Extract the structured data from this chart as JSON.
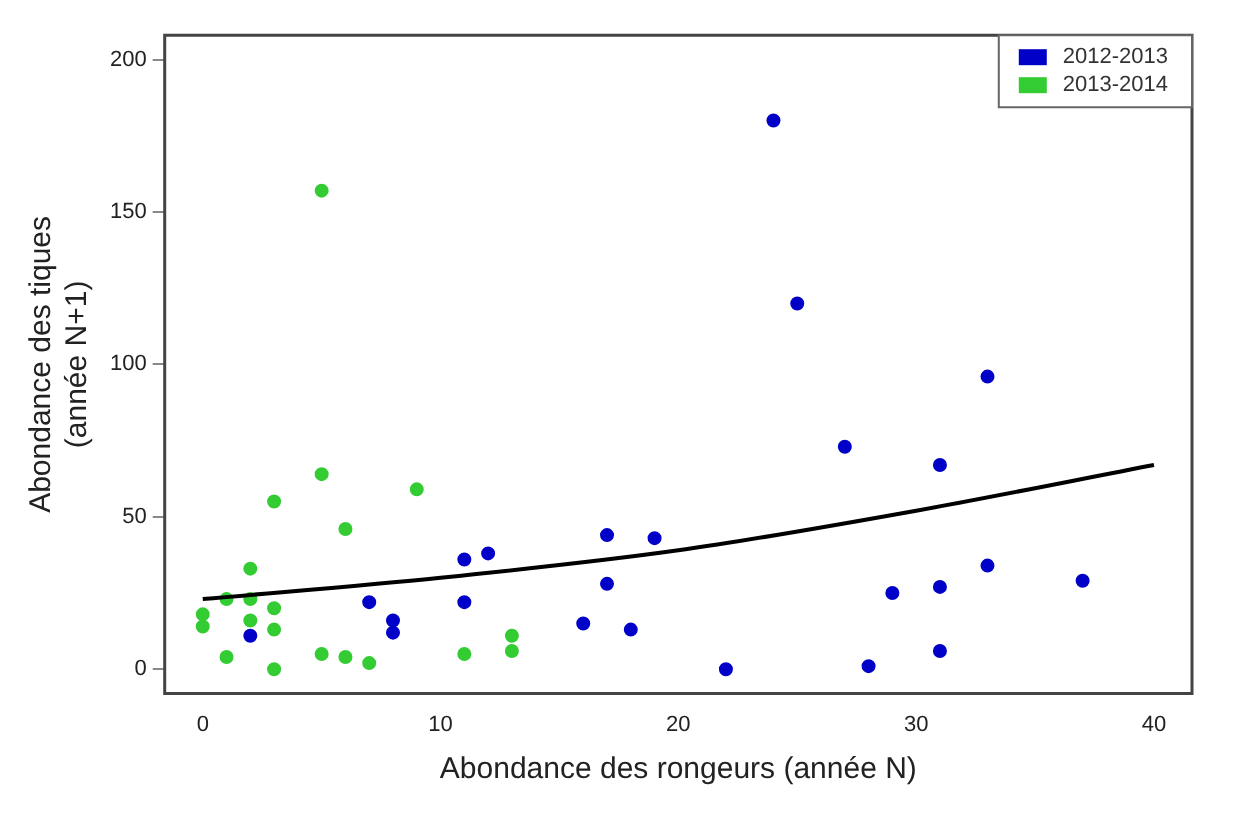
{
  "chart_data": {
    "type": "scatter",
    "xlabel": "Abondance des rongeurs (année N)",
    "ylabel": "Abondance des tiques\n(année N+1)",
    "xlim": [
      -1.6,
      41.6
    ],
    "ylim": [
      -8,
      208
    ],
    "xticks": [
      0,
      10,
      20,
      30,
      40
    ],
    "yticks": [
      0,
      50,
      100,
      150,
      200
    ],
    "grid": false,
    "legend": "top right",
    "marker": "circle",
    "series": [
      {
        "name": "2012-2013",
        "color": "#0000c8",
        "x": [
          24,
          25,
          33,
          27,
          31,
          12,
          11,
          17,
          19,
          17,
          7,
          11,
          8,
          8,
          16,
          18,
          31,
          33,
          29,
          37,
          31,
          28,
          22,
          2
        ],
        "values": [
          180,
          120,
          96,
          73,
          67,
          38,
          36,
          44,
          43,
          28,
          22,
          22,
          16,
          12,
          15,
          13,
          27,
          34,
          25,
          29,
          6,
          1,
          0,
          11
        ]
      },
      {
        "name": "2013-2014",
        "color": "#33cc33",
        "x": [
          5,
          5,
          9,
          3,
          6,
          2,
          0,
          0,
          1,
          2,
          2,
          3,
          3,
          3,
          1,
          5,
          6,
          7,
          11,
          13,
          13
        ],
        "values": [
          157,
          64,
          59,
          55,
          46,
          33,
          18,
          14,
          23,
          23,
          16,
          20,
          13,
          0,
          4,
          5,
          4,
          2,
          5,
          11,
          6
        ]
      },
      {
        "type": "line",
        "color": "#000000",
        "marker": "none",
        "x": [
          0,
          10,
          20,
          30,
          40
        ],
        "values": [
          23,
          30,
          39,
          52,
          67
        ]
      }
    ]
  }
}
